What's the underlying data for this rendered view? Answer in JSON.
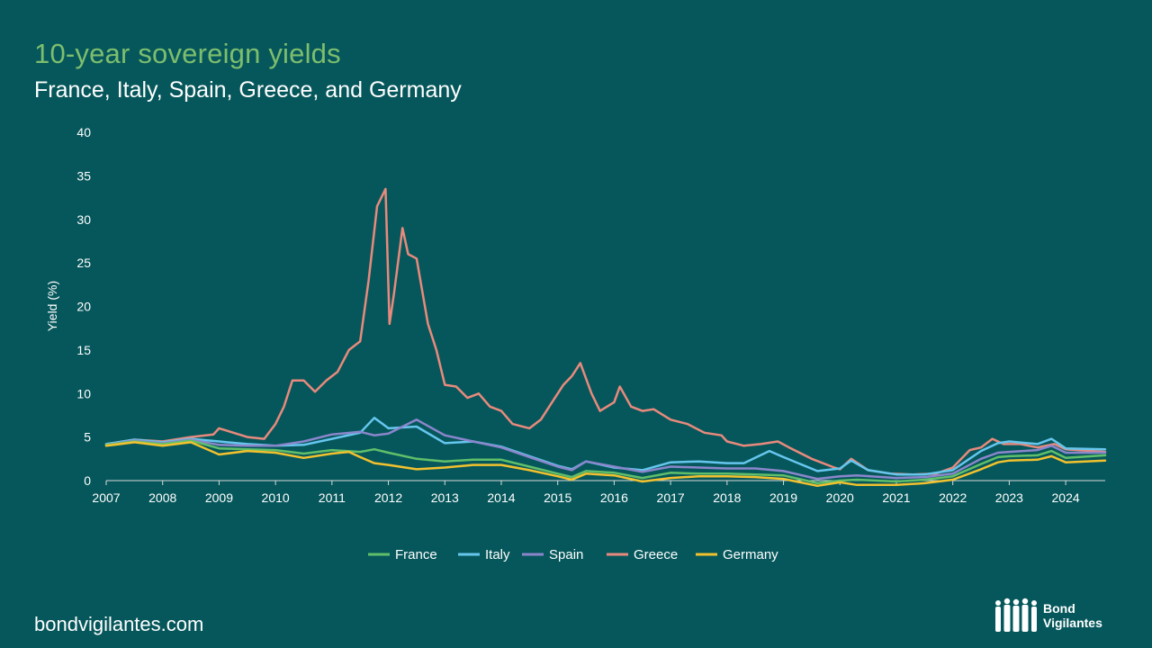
{
  "header": {
    "title": "10-year sovereign yields",
    "subtitle": "France, Italy, Spain, Greece, and Germany"
  },
  "footer": {
    "site": "bondvigilantes.com",
    "logo_line1": "Bond",
    "logo_line2": "Vigilantes"
  },
  "colors": {
    "background": "#06575b",
    "title": "#7dbe6e",
    "France": "#5fbf6a",
    "Italy": "#66c6ee",
    "Spain": "#8b86cc",
    "Greece": "#e88a7d",
    "Germany": "#f2c12e"
  },
  "chart_data": {
    "type": "line",
    "title": "10-year sovereign yields",
    "subtitle": "France, Italy, Spain, Greece, and Germany",
    "xlabel": "",
    "ylabel": "Yield (%)",
    "xlim": [
      2007,
      2024.7
    ],
    "ylim": [
      0,
      40
    ],
    "x_ticks": [
      "2007",
      "2008",
      "2009",
      "2010",
      "2011",
      "2012",
      "2013",
      "2014",
      "2015",
      "2016",
      "2017",
      "2018",
      "2019",
      "2020",
      "2021",
      "2022",
      "2023",
      "2024"
    ],
    "y_ticks": [
      "0",
      "5",
      "10",
      "15",
      "20",
      "25",
      "30",
      "35",
      "40"
    ],
    "legend": "bottom",
    "series": [
      {
        "name": "France",
        "x": [
          2007,
          2007.5,
          2008,
          2008.5,
          2009,
          2009.5,
          2010,
          2010.5,
          2011,
          2011.5,
          2011.75,
          2012,
          2012.5,
          2013,
          2013.5,
          2014,
          2014.5,
          2015,
          2015.25,
          2015.5,
          2016,
          2016.5,
          2017,
          2017.5,
          2018,
          2018.5,
          2019,
          2019.6,
          2020,
          2020.3,
          2021,
          2021.5,
          2022,
          2022.5,
          2022.8,
          2023,
          2023.5,
          2023.75,
          2024,
          2024.7
        ],
        "y": [
          4.1,
          4.5,
          4.2,
          4.6,
          3.7,
          3.6,
          3.5,
          3.1,
          3.5,
          3.3,
          3.6,
          3.2,
          2.5,
          2.2,
          2.4,
          2.4,
          1.6,
          0.8,
          0.4,
          1.1,
          0.9,
          0.3,
          0.9,
          0.8,
          0.8,
          0.7,
          0.6,
          -0.3,
          0.0,
          0.1,
          -0.1,
          0.1,
          0.5,
          1.9,
          2.7,
          2.8,
          2.9,
          3.4,
          2.6,
          2.9
        ]
      },
      {
        "name": "Italy",
        "x": [
          2007,
          2007.5,
          2008,
          2008.5,
          2009,
          2009.5,
          2010,
          2010.5,
          2011,
          2011.5,
          2011.75,
          2011.9,
          2012,
          2012.5,
          2013,
          2013.5,
          2014,
          2014.5,
          2015,
          2015.25,
          2015.5,
          2016,
          2016.5,
          2017,
          2017.5,
          2018,
          2018.3,
          2018.75,
          2019,
          2019.6,
          2020,
          2020.2,
          2020.5,
          2021,
          2021.5,
          2022,
          2022.5,
          2022.8,
          2023,
          2023.5,
          2023.75,
          2024,
          2024.7
        ],
        "y": [
          4.2,
          4.7,
          4.4,
          4.8,
          4.5,
          4.2,
          4.0,
          4.1,
          4.8,
          5.5,
          7.2,
          6.5,
          6.0,
          6.2,
          4.3,
          4.5,
          3.9,
          2.8,
          1.7,
          1.3,
          2.2,
          1.5,
          1.2,
          2.1,
          2.2,
          2.0,
          2.0,
          3.4,
          2.7,
          1.1,
          1.4,
          2.3,
          1.2,
          0.7,
          0.7,
          1.2,
          3.4,
          4.3,
          4.5,
          4.2,
          4.8,
          3.7,
          3.6
        ]
      },
      {
        "name": "Spain",
        "x": [
          2007,
          2007.5,
          2008,
          2008.5,
          2009,
          2009.5,
          2010,
          2010.5,
          2011,
          2011.5,
          2011.75,
          2012,
          2012.5,
          2013,
          2013.5,
          2014,
          2014.5,
          2015,
          2015.25,
          2015.5,
          2016,
          2016.5,
          2017,
          2017.5,
          2018,
          2018.5,
          2019,
          2019.6,
          2020,
          2020.3,
          2021,
          2021.5,
          2022,
          2022.5,
          2022.8,
          2023,
          2023.5,
          2023.75,
          2024,
          2024.7
        ],
        "y": [
          4.1,
          4.6,
          4.3,
          4.7,
          4.1,
          4.0,
          4.0,
          4.5,
          5.3,
          5.6,
          5.2,
          5.4,
          7.0,
          5.2,
          4.5,
          3.8,
          2.7,
          1.6,
          1.2,
          2.2,
          1.6,
          1.0,
          1.6,
          1.5,
          1.4,
          1.4,
          1.1,
          0.2,
          0.5,
          0.6,
          0.3,
          0.4,
          0.8,
          2.5,
          3.2,
          3.3,
          3.5,
          4.0,
          3.2,
          3.2
        ]
      },
      {
        "name": "Greece",
        "x": [
          2007,
          2007.5,
          2008,
          2008.5,
          2008.9,
          2009,
          2009.5,
          2009.8,
          2010,
          2010.15,
          2010.3,
          2010.5,
          2010.7,
          2010.9,
          2011.1,
          2011.3,
          2011.5,
          2011.65,
          2011.8,
          2011.95,
          2012.02,
          2012.1,
          2012.25,
          2012.35,
          2012.5,
          2012.7,
          2012.85,
          2013,
          2013.2,
          2013.4,
          2013.6,
          2013.8,
          2014,
          2014.2,
          2014.5,
          2014.7,
          2014.9,
          2015.1,
          2015.25,
          2015.4,
          2015.6,
          2015.75,
          2016,
          2016.1,
          2016.3,
          2016.5,
          2016.7,
          2017,
          2017.3,
          2017.6,
          2017.9,
          2018,
          2018.3,
          2018.6,
          2018.9,
          2019.1,
          2019.5,
          2019.9,
          2020,
          2020.2,
          2020.5,
          2020.9,
          2021.3,
          2021.7,
          2022,
          2022.3,
          2022.5,
          2022.7,
          2022.9,
          2023.2,
          2023.5,
          2023.8,
          2024,
          2024.7
        ],
        "y": [
          4.2,
          4.7,
          4.5,
          5.0,
          5.3,
          6.0,
          5.0,
          4.8,
          6.5,
          8.5,
          11.5,
          11.5,
          10.2,
          11.5,
          12.5,
          15.0,
          16.0,
          23.0,
          31.5,
          33.5,
          18.0,
          21.5,
          29.0,
          26.0,
          25.5,
          18.0,
          15.0,
          11.0,
          10.8,
          9.5,
          10.0,
          8.5,
          8.0,
          6.5,
          6.0,
          7.0,
          9.0,
          11.0,
          12.0,
          13.5,
          10.0,
          8.0,
          9.0,
          10.8,
          8.5,
          8.0,
          8.2,
          7.0,
          6.5,
          5.5,
          5.2,
          4.5,
          4.0,
          4.2,
          4.5,
          3.8,
          2.5,
          1.5,
          1.3,
          2.5,
          1.2,
          0.8,
          0.7,
          0.8,
          1.5,
          3.5,
          3.8,
          4.8,
          4.2,
          4.2,
          3.8,
          4.2,
          3.6,
          3.3
        ]
      },
      {
        "name": "Germany",
        "x": [
          2007,
          2007.5,
          2008,
          2008.5,
          2009,
          2009.5,
          2010,
          2010.5,
          2011,
          2011.3,
          2011.5,
          2011.75,
          2012,
          2012.5,
          2013,
          2013.5,
          2014,
          2014.5,
          2015,
          2015.25,
          2015.5,
          2016,
          2016.5,
          2017,
          2017.5,
          2018,
          2018.5,
          2019,
          2019.6,
          2020,
          2020.3,
          2021,
          2021.5,
          2022,
          2022.5,
          2022.8,
          2023,
          2023.5,
          2023.75,
          2024,
          2024.7
        ],
        "y": [
          4.0,
          4.4,
          4.0,
          4.4,
          3.0,
          3.4,
          3.2,
          2.6,
          3.1,
          3.3,
          2.7,
          2.0,
          1.8,
          1.3,
          1.5,
          1.8,
          1.8,
          1.2,
          0.5,
          0.1,
          0.8,
          0.6,
          -0.1,
          0.3,
          0.5,
          0.5,
          0.4,
          0.2,
          -0.6,
          -0.2,
          -0.5,
          -0.5,
          -0.3,
          0.1,
          1.3,
          2.1,
          2.3,
          2.4,
          2.8,
          2.1,
          2.3
        ]
      }
    ]
  }
}
